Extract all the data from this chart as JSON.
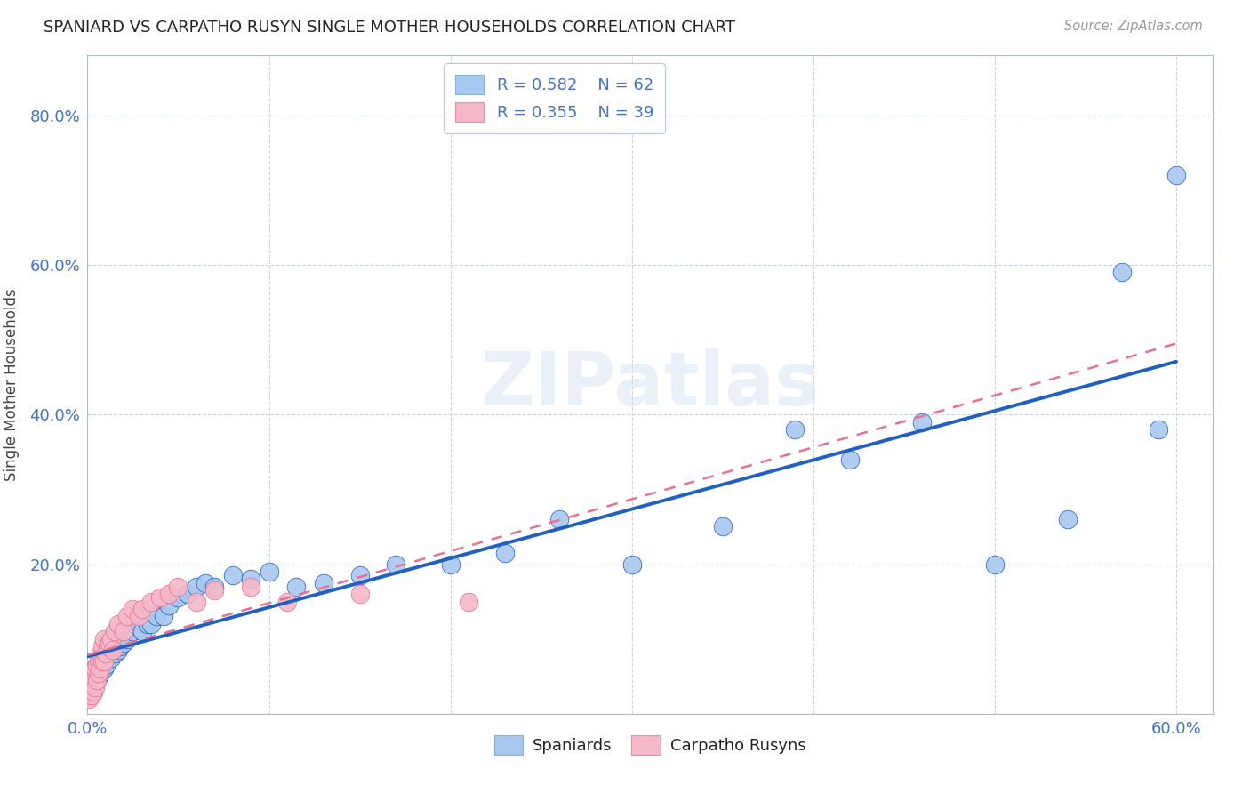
{
  "title": "SPANIARD VS CARPATHO RUSYN SINGLE MOTHER HOUSEHOLDS CORRELATION CHART",
  "source": "Source: ZipAtlas.com",
  "ylabel": "Single Mother Households",
  "xlim": [
    0.0,
    0.62
  ],
  "ylim": [
    0.0,
    0.88
  ],
  "xticks": [
    0.0,
    0.1,
    0.2,
    0.3,
    0.4,
    0.5,
    0.6
  ],
  "yticks": [
    0.0,
    0.2,
    0.4,
    0.6,
    0.8
  ],
  "ytick_labels": [
    "",
    "20.0%",
    "40.0%",
    "60.0%",
    "80.0%"
  ],
  "xtick_labels": [
    "0.0%",
    "",
    "",
    "",
    "",
    "",
    "60.0%"
  ],
  "R_spaniard": 0.582,
  "N_spaniard": 62,
  "R_rusyn": 0.355,
  "N_rusyn": 39,
  "spaniard_color": "#a8c8f0",
  "rusyn_color": "#f4b8c8",
  "trend_spaniard_color": "#2060c0",
  "trend_rusyn_color": "#e87090",
  "watermark": "ZIPatlas",
  "spaniard_x": [
    0.001,
    0.002,
    0.002,
    0.003,
    0.003,
    0.004,
    0.004,
    0.005,
    0.005,
    0.006,
    0.006,
    0.007,
    0.007,
    0.008,
    0.008,
    0.009,
    0.009,
    0.01,
    0.01,
    0.011,
    0.012,
    0.013,
    0.014,
    0.015,
    0.016,
    0.017,
    0.018,
    0.02,
    0.022,
    0.025,
    0.028,
    0.03,
    0.033,
    0.035,
    0.038,
    0.042,
    0.045,
    0.05,
    0.055,
    0.06,
    0.065,
    0.07,
    0.08,
    0.09,
    0.1,
    0.115,
    0.13,
    0.15,
    0.17,
    0.2,
    0.23,
    0.26,
    0.3,
    0.35,
    0.39,
    0.42,
    0.46,
    0.5,
    0.54,
    0.57,
    0.59,
    0.6
  ],
  "spaniard_y": [
    0.025,
    0.03,
    0.04,
    0.03,
    0.05,
    0.04,
    0.06,
    0.045,
    0.065,
    0.05,
    0.07,
    0.055,
    0.075,
    0.06,
    0.08,
    0.06,
    0.07,
    0.065,
    0.08,
    0.075,
    0.085,
    0.075,
    0.09,
    0.08,
    0.095,
    0.085,
    0.09,
    0.095,
    0.1,
    0.11,
    0.115,
    0.11,
    0.12,
    0.12,
    0.13,
    0.13,
    0.145,
    0.155,
    0.16,
    0.17,
    0.175,
    0.17,
    0.185,
    0.18,
    0.19,
    0.17,
    0.175,
    0.185,
    0.2,
    0.2,
    0.215,
    0.26,
    0.2,
    0.25,
    0.38,
    0.34,
    0.39,
    0.2,
    0.26,
    0.59,
    0.38,
    0.72
  ],
  "rusyn_x": [
    0.001,
    0.002,
    0.002,
    0.003,
    0.003,
    0.004,
    0.004,
    0.005,
    0.005,
    0.006,
    0.006,
    0.007,
    0.007,
    0.008,
    0.008,
    0.009,
    0.009,
    0.01,
    0.011,
    0.012,
    0.013,
    0.014,
    0.015,
    0.017,
    0.02,
    0.022,
    0.025,
    0.028,
    0.03,
    0.035,
    0.04,
    0.045,
    0.05,
    0.06,
    0.07,
    0.09,
    0.11,
    0.15,
    0.21
  ],
  "rusyn_y": [
    0.02,
    0.025,
    0.04,
    0.03,
    0.05,
    0.035,
    0.06,
    0.045,
    0.065,
    0.055,
    0.07,
    0.06,
    0.08,
    0.07,
    0.09,
    0.07,
    0.1,
    0.08,
    0.09,
    0.095,
    0.1,
    0.085,
    0.11,
    0.12,
    0.11,
    0.13,
    0.14,
    0.13,
    0.14,
    0.15,
    0.155,
    0.16,
    0.17,
    0.15,
    0.165,
    0.17,
    0.15,
    0.16,
    0.15
  ],
  "trend_blue_x0": 0.0,
  "trend_blue_x1": 0.6,
  "trend_pink_x0": 0.0,
  "trend_pink_x1": 0.6
}
